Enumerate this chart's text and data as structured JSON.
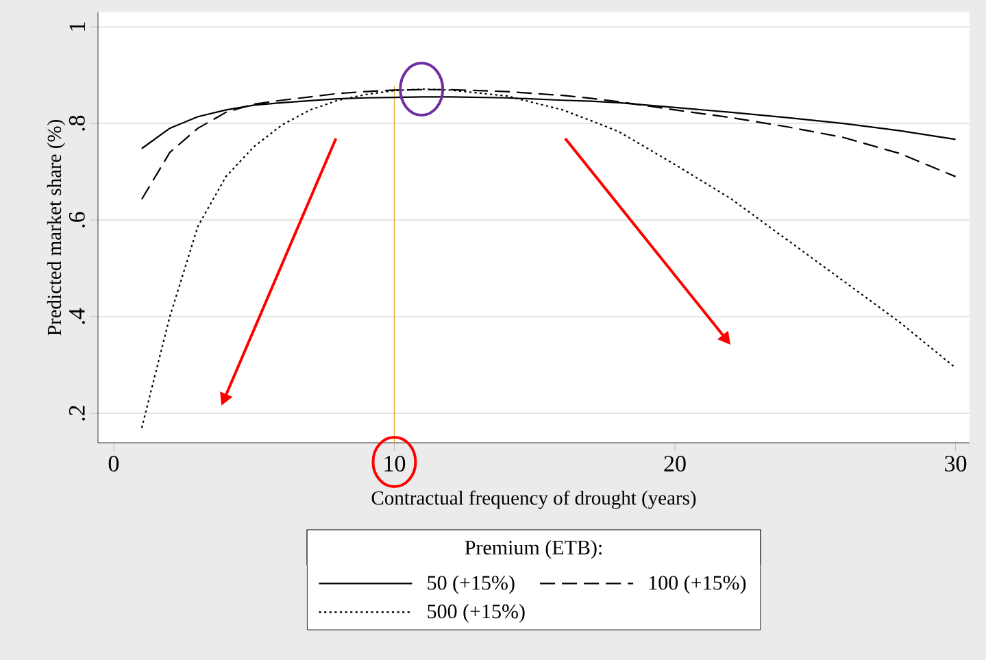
{
  "chart_data": {
    "type": "line",
    "xlabel": "Contractual frequency of drought (years)",
    "ylabel": "Predicted market share (%)",
    "legend_title": "Premium (ETB):",
    "x": [
      1,
      2,
      3,
      4,
      5,
      6,
      7,
      8,
      9,
      10,
      11,
      12,
      14,
      16,
      17,
      18,
      20,
      22,
      24,
      26,
      28,
      30
    ],
    "series": [
      {
        "name": "50 (+15%)",
        "color": "#000000",
        "line_style": "solid",
        "values": [
          0.748,
          0.79,
          0.814,
          0.828,
          0.838,
          0.843,
          0.847,
          0.851,
          0.853,
          0.854,
          0.855,
          0.855,
          0.853,
          0.848,
          0.846,
          0.843,
          0.833,
          0.823,
          0.812,
          0.8,
          0.785,
          0.767
        ]
      },
      {
        "name": "100 (+15%)",
        "color": "#000000",
        "line_style": "dashed",
        "values": [
          0.643,
          0.74,
          0.79,
          0.823,
          0.84,
          0.848,
          0.855,
          0.862,
          0.866,
          0.869,
          0.87,
          0.87,
          0.866,
          0.858,
          0.852,
          0.845,
          0.828,
          0.812,
          0.793,
          0.771,
          0.738,
          0.69
        ]
      },
      {
        "name": "500 (+15%)",
        "color": "#000000",
        "line_style": "dotted",
        "values": [
          0.17,
          0.4,
          0.587,
          0.69,
          0.752,
          0.797,
          0.828,
          0.848,
          0.86,
          0.868,
          0.871,
          0.869,
          0.857,
          0.828,
          0.806,
          0.783,
          0.715,
          0.644,
          0.559,
          0.474,
          0.389,
          0.294
        ]
      }
    ],
    "xlim": [
      -0.56,
      30.5
    ],
    "ylim": [
      0.139,
      1.03
    ],
    "xticks": [
      0,
      10,
      20,
      30
    ],
    "yticks": [
      {
        "value": 0.2,
        "label": ".2"
      },
      {
        "value": 0.4,
        "label": ".4"
      },
      {
        "value": 0.6,
        "label": ".6"
      },
      {
        "value": 0.8,
        "label": ".8"
      },
      1
    ],
    "grid": "y",
    "legend": "bottom",
    "ref_lines": [
      {
        "axis": "x",
        "value": 10,
        "color": "#d9a520"
      }
    ]
  }
}
